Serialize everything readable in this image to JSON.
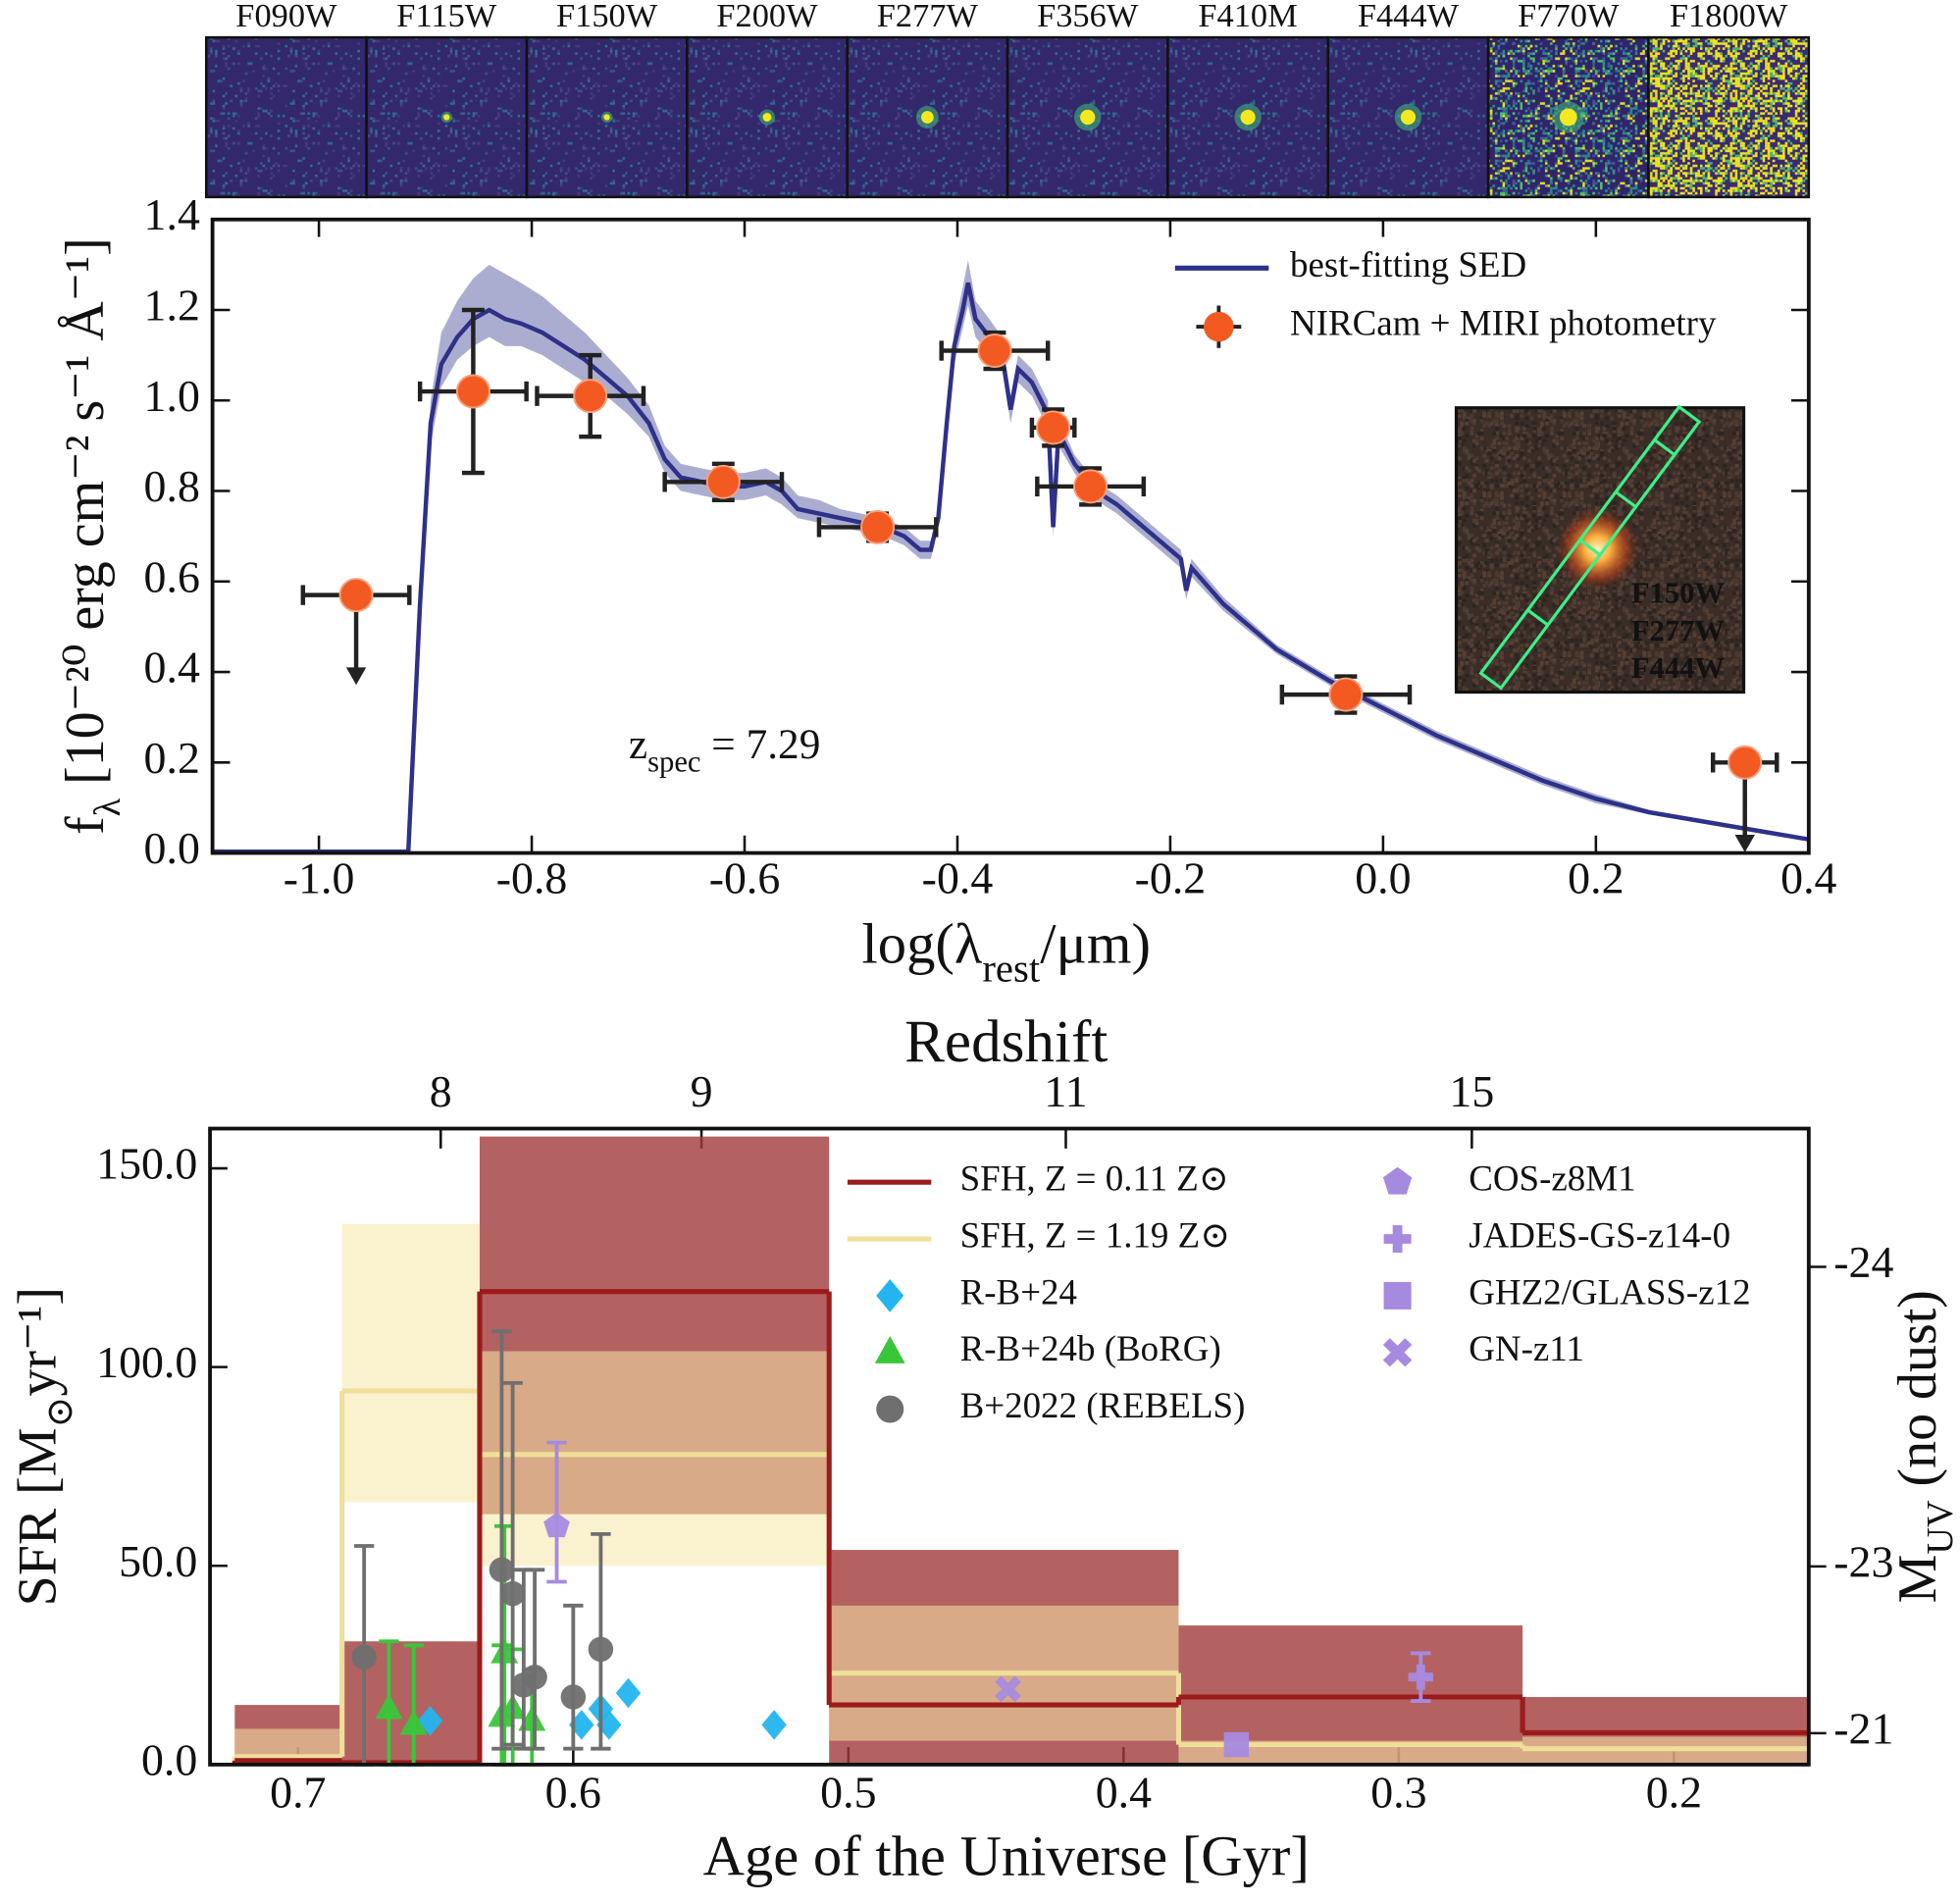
{
  "cutouts": {
    "filters": [
      "F090W",
      "F115W",
      "F150W",
      "F200W",
      "F277W",
      "F356W",
      "F410M",
      "F444W",
      "F770W",
      "F1800W"
    ]
  },
  "chart_data": [
    {
      "type": "sed",
      "x_label": {
        "text": "log(λ",
        "sub": "rest",
        "tail": "/μm)"
      },
      "y_label": {
        "text": "f",
        "sub": "λ",
        "tail": " [10⁻²⁰ erg cm⁻² s⁻¹ Å⁻¹]"
      },
      "annotation": {
        "text": "z",
        "sub": "spec",
        "tail": " = 7.29"
      },
      "xlim": [
        -1.1,
        0.4
      ],
      "xticks": [
        {
          "value": -1.0,
          "label": "-1.0"
        },
        {
          "value": -0.8,
          "label": "-0.8"
        },
        {
          "value": -0.6,
          "label": "-0.6"
        },
        {
          "value": -0.4,
          "label": "-0.4"
        },
        {
          "value": -0.2,
          "label": "-0.2"
        },
        {
          "value": 0.0,
          "label": "0.0"
        },
        {
          "value": 0.2,
          "label": "0.2"
        },
        {
          "value": 0.4,
          "label": "0.4"
        }
      ],
      "ylim": [
        0,
        1.4
      ],
      "yticks": [
        {
          "value": 0.0,
          "label": "0.0"
        },
        {
          "value": 0.2,
          "label": "0.2"
        },
        {
          "value": 0.4,
          "label": "0.4"
        },
        {
          "value": 0.6,
          "label": "0.6"
        },
        {
          "value": 0.8,
          "label": "0.8"
        },
        {
          "value": 1.0,
          "label": "1.0"
        },
        {
          "value": 1.2,
          "label": "1.2"
        },
        {
          "value": 1.4,
          "label": "1.4"
        }
      ],
      "legend": "upper right",
      "series": [
        {
          "name": "best-fitting SED",
          "color": "#2e3189",
          "x": [
            -1.1,
            -0.93,
            -0.916,
            -0.905,
            -0.895,
            -0.885,
            -0.87,
            -0.855,
            -0.84,
            -0.825,
            -0.81,
            -0.79,
            -0.77,
            -0.75,
            -0.73,
            -0.71,
            -0.69,
            -0.675,
            -0.66,
            -0.64,
            -0.62,
            -0.6,
            -0.58,
            -0.565,
            -0.55,
            -0.53,
            -0.51,
            -0.49,
            -0.47,
            -0.45,
            -0.435,
            -0.425,
            -0.418,
            -0.41,
            -0.403,
            -0.395,
            -0.39,
            -0.383,
            -0.37,
            -0.358,
            -0.35,
            -0.343,
            -0.33,
            -0.315,
            -0.31,
            -0.305,
            -0.29,
            -0.27,
            -0.25,
            -0.22,
            -0.19,
            -0.185,
            -0.18,
            -0.15,
            -0.1,
            -0.05,
            0.0,
            0.05,
            0.1,
            0.15,
            0.2,
            0.25,
            0.3,
            0.35,
            0.4
          ],
          "values": [
            0.003,
            0.003,
            0.003,
            0.55,
            0.95,
            1.08,
            1.14,
            1.18,
            1.2,
            1.18,
            1.17,
            1.15,
            1.12,
            1.09,
            1.05,
            1.01,
            0.95,
            0.87,
            0.83,
            0.82,
            0.81,
            0.81,
            0.82,
            0.8,
            0.76,
            0.75,
            0.74,
            0.73,
            0.72,
            0.7,
            0.67,
            0.67,
            0.74,
            0.95,
            1.12,
            1.2,
            1.26,
            1.18,
            1.14,
            1.1,
            0.98,
            1.07,
            1.04,
            0.97,
            0.72,
            0.93,
            0.86,
            0.8,
            0.77,
            0.71,
            0.65,
            0.58,
            0.63,
            0.55,
            0.45,
            0.38,
            0.32,
            0.26,
            0.21,
            0.16,
            0.12,
            0.09,
            0.07,
            0.05,
            0.03
          ],
          "lower": [
            0.0,
            0.0,
            0.0,
            0.5,
            0.9,
            1.03,
            1.09,
            1.12,
            1.14,
            1.12,
            1.12,
            1.1,
            1.07,
            1.04,
            1.01,
            0.97,
            0.92,
            0.84,
            0.8,
            0.79,
            0.78,
            0.78,
            0.79,
            0.77,
            0.74,
            0.73,
            0.72,
            0.71,
            0.7,
            0.68,
            0.65,
            0.65,
            0.72,
            0.92,
            1.08,
            1.16,
            1.21,
            1.14,
            1.1,
            1.07,
            0.95,
            1.04,
            1.01,
            0.94,
            0.7,
            0.9,
            0.84,
            0.78,
            0.75,
            0.69,
            0.63,
            0.56,
            0.61,
            0.535,
            0.44,
            0.37,
            0.31,
            0.25,
            0.2,
            0.15,
            0.11,
            0.085,
            0.065,
            0.045,
            0.027
          ],
          "upper": [
            0.006,
            0.006,
            0.006,
            0.6,
            1.0,
            1.15,
            1.22,
            1.27,
            1.3,
            1.28,
            1.26,
            1.23,
            1.19,
            1.15,
            1.1,
            1.05,
            0.99,
            0.9,
            0.86,
            0.85,
            0.84,
            0.84,
            0.85,
            0.83,
            0.79,
            0.78,
            0.76,
            0.75,
            0.74,
            0.72,
            0.69,
            0.69,
            0.76,
            0.98,
            1.16,
            1.25,
            1.31,
            1.22,
            1.18,
            1.14,
            1.01,
            1.1,
            1.07,
            1.0,
            0.74,
            0.96,
            0.88,
            0.82,
            0.79,
            0.73,
            0.67,
            0.6,
            0.65,
            0.565,
            0.46,
            0.39,
            0.33,
            0.27,
            0.22,
            0.17,
            0.13,
            0.095,
            0.075,
            0.055,
            0.033
          ]
        },
        {
          "name": "NIRCam + MIRI photometry",
          "color": "#f25a22",
          "x": [
            -0.965,
            -0.855,
            -0.745,
            -0.62,
            -0.475,
            -0.365,
            -0.31,
            -0.275,
            -0.035,
            0.34
          ],
          "values": [
            0.57,
            1.02,
            1.01,
            0.82,
            0.72,
            1.11,
            0.94,
            0.81,
            0.35,
            0.2
          ],
          "xerr": [
            0.05,
            0.05,
            0.05,
            0.055,
            0.055,
            0.05,
            0.02,
            0.05,
            0.06,
            0.03
          ],
          "yerr": [
            null,
            0.18,
            0.09,
            0.04,
            0.03,
            0.04,
            0.04,
            0.04,
            0.04,
            null
          ],
          "upper_limit": [
            true,
            false,
            false,
            false,
            false,
            false,
            false,
            false,
            false,
            true
          ]
        }
      ],
      "inset_labels": [
        {
          "text": "F150W",
          "color": "#2f86e8"
        },
        {
          "text": "F277W",
          "color": "#1c7a1c"
        },
        {
          "text": "F444W",
          "color": "#e01818"
        }
      ]
    },
    {
      "type": "sfh",
      "x_label": "Age of the Universe [Gyr]",
      "x2_label": "Redshift",
      "y_label": {
        "text": "SFR [M",
        "sub": "⊙",
        "tail": "yr⁻¹]"
      },
      "y2_label": {
        "text": "M",
        "sub": "UV",
        "tail": " (no dust)"
      },
      "xlim": [
        0.732,
        0.151
      ],
      "xticks": [
        0.7,
        0.6,
        0.5,
        0.4,
        0.3,
        0.2
      ],
      "x2ticks": [
        8,
        9,
        11,
        15
      ],
      "ylim": [
        0,
        160
      ],
      "yticks": [
        {
          "value": 0,
          "label": "0.0"
        },
        {
          "value": 50,
          "label": "50.0"
        },
        {
          "value": 100,
          "label": "100.0"
        },
        {
          "value": 150,
          "label": "150.0"
        }
      ],
      "y2ticks": [
        -24,
        -23,
        -21
      ],
      "bin_edges": [
        0.723,
        0.684,
        0.634,
        0.507,
        0.38,
        0.255,
        0.151
      ],
      "sfh": [
        {
          "name": "SFH, Z = 0.11 Z⊙",
          "color": "#9b1b1b",
          "band_color": "#a13a3a",
          "values": [
            1,
            0.5,
            119,
            15,
            17,
            8
          ],
          "lower": [
            0,
            0,
            63,
            0,
            0,
            0
          ],
          "upper": [
            15,
            31,
            158,
            54,
            35,
            17
          ]
        },
        {
          "name": "SFH, Z = 1.19 Z⊙",
          "color": "#efdf9a",
          "band_color": "#f6e7a8",
          "values": [
            2,
            94,
            78,
            23,
            5,
            4
          ],
          "lower": [
            0,
            66,
            50,
            6,
            0,
            0
          ],
          "upper": [
            9,
            136,
            104,
            40,
            6,
            7
          ]
        }
      ],
      "observations": [
        {
          "name": "R-B+24",
          "marker": "diamond",
          "color": "#22b5ef",
          "x": [
            0.652,
            0.597,
            0.59,
            0.587,
            0.58,
            0.527
          ],
          "values": [
            11,
            10,
            14,
            10,
            18,
            10
          ]
        },
        {
          "name": "R-B+24b (BoRG)",
          "marker": "triangle",
          "color": "#39c739",
          "x": [
            0.667,
            0.658,
            0.626,
            0.625,
            0.622,
            0.615
          ],
          "values": [
            14,
            10,
            12,
            28,
            14,
            11
          ],
          "yerr_lower": [
            14,
            10,
            12,
            28,
            14,
            11
          ],
          "yerr_upper": [
            17,
            20,
            18,
            32,
            15,
            13
          ]
        },
        {
          "name": "B+2022 (REBELS)",
          "marker": "circle",
          "color": "#6f6f6f",
          "x": [
            0.676,
            0.626,
            0.622,
            0.618,
            0.614,
            0.6,
            0.59
          ],
          "values": [
            27,
            49,
            43,
            20,
            22,
            17,
            29
          ],
          "yerr_lower": [
            27,
            45,
            38,
            16,
            18,
            13,
            25
          ],
          "yerr_upper": [
            28,
            60,
            53,
            29,
            27,
            23,
            29
          ]
        },
        {
          "name": "COS-z8M1",
          "marker": "pentagon",
          "color": "#a68ae0",
          "x": [
            0.606
          ],
          "values": [
            60
          ],
          "yerr_lower": [
            14
          ],
          "yerr_upper": [
            21
          ]
        },
        {
          "name": "JADES-GS-z14-0",
          "marker": "plus",
          "color": "#a68ae0",
          "x": [
            0.292
          ],
          "values": [
            22
          ],
          "yerr_lower": [
            6
          ],
          "yerr_upper": [
            6
          ]
        },
        {
          "name": "GHZ2/GLASS-z12",
          "marker": "square",
          "color": "#a68ae0",
          "x": [
            0.359
          ],
          "values": [
            5
          ]
        },
        {
          "name": "GN-z11",
          "marker": "x",
          "color": "#a68ae0",
          "x": [
            0.442
          ],
          "values": [
            19
          ]
        }
      ]
    }
  ]
}
